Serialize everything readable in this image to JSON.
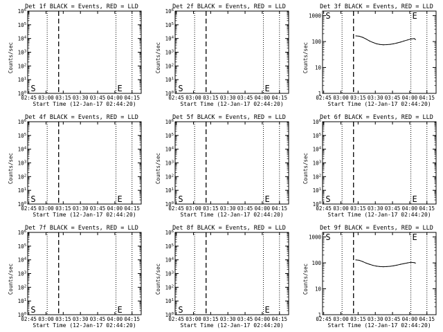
{
  "chart_data": [
    {
      "type": "line",
      "title": "Det 1f BLACK = Events, RED = LLD",
      "xlabel": "Start Time (12-Jan-17 02:44:20)",
      "ylabel": "Counts/sec",
      "x_ticks": [
        "02:45",
        "03:00",
        "03:15",
        "03:30",
        "03:45",
        "04:00",
        "04:15"
      ],
      "y_scale": "log",
      "y_ticks": [
        "10^0",
        "10^1",
        "10^2",
        "10^3",
        "10^4",
        "10^5",
        "10^6"
      ],
      "ylim": [
        1,
        1000000
      ],
      "vlines_dotted": [
        "03:01",
        "04:01",
        "04:15"
      ],
      "vline_dashed": "03:11",
      "markers": [
        {
          "text": "S",
          "x": "02:46"
        },
        {
          "text": "E",
          "x": "04:01"
        }
      ],
      "series": []
    },
    {
      "type": "line",
      "title": "Det 2f BLACK = Events, RED = LLD",
      "xlabel": "Start Time (12-Jan-17 02:44:20)",
      "ylabel": "Counts/sec",
      "x_ticks": [
        "02:45",
        "03:00",
        "03:15",
        "03:30",
        "03:45",
        "04:00",
        "04:15"
      ],
      "y_scale": "log",
      "y_ticks": [
        "10^0",
        "10^1",
        "10^2",
        "10^3",
        "10^4",
        "10^5",
        "10^6"
      ],
      "ylim": [
        1,
        1000000
      ],
      "vlines_dotted": [
        "03:01",
        "04:01",
        "04:15"
      ],
      "vline_dashed": "03:11",
      "markers": [
        {
          "text": "S",
          "x": "02:46"
        },
        {
          "text": "E",
          "x": "04:01"
        }
      ],
      "series": []
    },
    {
      "type": "line",
      "title": "Det 3f BLACK = Events, RED = LLD",
      "xlabel": "Start Time (12-Jan-17 02:44:20)",
      "ylabel": "Counts/sec",
      "x_ticks": [
        "02:45",
        "03:00",
        "03:15",
        "03:30",
        "03:45",
        "04:00",
        "04:15"
      ],
      "y_scale": "log",
      "y_ticks": [
        "1",
        "10",
        "100",
        "1000"
      ],
      "ylim": [
        1,
        1500
      ],
      "vlines_dotted": [
        "03:01",
        "04:01",
        "04:15"
      ],
      "vline_dashed": "03:11",
      "markers": [
        {
          "text": "S",
          "x": "02:46"
        },
        {
          "text": "E",
          "x": "04:01"
        }
      ],
      "series": [
        {
          "x": [
            "03:13",
            "03:16",
            "03:19",
            "03:22",
            "03:25",
            "03:28",
            "03:31",
            "03:34",
            "03:37",
            "03:40",
            "03:43",
            "03:46",
            "03:49",
            "03:52",
            "03:55",
            "03:58",
            "04:01",
            "04:04",
            "04:05"
          ],
          "y": [
            165,
            160,
            145,
            125,
            105,
            92,
            82,
            77,
            75,
            76,
            78,
            82,
            88,
            95,
            105,
            115,
            125,
            130,
            120
          ]
        }
      ]
    },
    {
      "type": "line",
      "title": "Det 4f BLACK = Events, RED = LLD",
      "xlabel": "Start Time (12-Jan-17 02:44:20)",
      "ylabel": "Counts/sec",
      "x_ticks": [
        "02:45",
        "03:00",
        "03:15",
        "03:30",
        "03:45",
        "04:00",
        "04:15"
      ],
      "y_scale": "log",
      "y_ticks": [
        "10^0",
        "10^1",
        "10^2",
        "10^3",
        "10^4",
        "10^5",
        "10^6"
      ],
      "ylim": [
        1,
        1000000
      ],
      "vlines_dotted": [
        "03:01",
        "04:01",
        "04:15"
      ],
      "vline_dashed": "03:11",
      "markers": [
        {
          "text": "S",
          "x": "02:46"
        },
        {
          "text": "E",
          "x": "04:01"
        }
      ],
      "series": []
    },
    {
      "type": "line",
      "title": "Det 5f BLACK = Events, RED = LLD",
      "xlabel": "Start Time (12-Jan-17 02:44:20)",
      "ylabel": "Counts/sec",
      "x_ticks": [
        "02:45",
        "03:00",
        "03:15",
        "03:30",
        "03:45",
        "04:00",
        "04:15"
      ],
      "y_scale": "log",
      "y_ticks": [
        "10^0",
        "10^1",
        "10^2",
        "10^3",
        "10^4",
        "10^5",
        "10^6"
      ],
      "ylim": [
        1,
        1000000
      ],
      "vlines_dotted": [
        "03:01",
        "04:01",
        "04:15"
      ],
      "vline_dashed": "03:11",
      "markers": [
        {
          "text": "S",
          "x": "02:46"
        },
        {
          "text": "E",
          "x": "04:01"
        }
      ],
      "series": []
    },
    {
      "type": "line",
      "title": "Det 6f BLACK = Events, RED = LLD",
      "xlabel": "Start Time (12-Jan-17 02:44:20)",
      "ylabel": "Counts/sec",
      "x_ticks": [
        "02:45",
        "03:00",
        "03:15",
        "03:30",
        "03:45",
        "04:00",
        "04:15"
      ],
      "y_scale": "log",
      "y_ticks": [
        "10^0",
        "10^1",
        "10^2",
        "10^3",
        "10^4",
        "10^5",
        "10^6"
      ],
      "ylim": [
        1,
        1000000
      ],
      "vlines_dotted": [
        "03:01",
        "04:01",
        "04:15"
      ],
      "vline_dashed": "03:11",
      "markers": [
        {
          "text": "S",
          "x": "02:46"
        },
        {
          "text": "E",
          "x": "04:01"
        }
      ],
      "series": []
    },
    {
      "type": "line",
      "title": "Det 7f BLACK = Events, RED = LLD",
      "xlabel": "Start Time (12-Jan-17 02:44:20)",
      "ylabel": "Counts/sec",
      "x_ticks": [
        "02:45",
        "03:00",
        "03:15",
        "03:30",
        "03:45",
        "04:00",
        "04:15"
      ],
      "y_scale": "log",
      "y_ticks": [
        "10^0",
        "10^1",
        "10^2",
        "10^3",
        "10^4",
        "10^5",
        "10^6"
      ],
      "ylim": [
        1,
        1000000
      ],
      "vlines_dotted": [
        "03:01",
        "04:01",
        "04:15"
      ],
      "vline_dashed": "03:11",
      "markers": [
        {
          "text": "S",
          "x": "02:46"
        },
        {
          "text": "E",
          "x": "04:01"
        }
      ],
      "series": []
    },
    {
      "type": "line",
      "title": "Det 8f BLACK = Events, RED = LLD",
      "xlabel": "Start Time (12-Jan-17 02:44:20)",
      "ylabel": "Counts/sec",
      "x_ticks": [
        "02:45",
        "03:00",
        "03:15",
        "03:30",
        "03:45",
        "04:00",
        "04:15"
      ],
      "y_scale": "log",
      "y_ticks": [
        "10^0",
        "10^1",
        "10^2",
        "10^3",
        "10^4",
        "10^5",
        "10^6"
      ],
      "ylim": [
        1,
        1000000
      ],
      "vlines_dotted": [
        "03:01",
        "04:01",
        "04:15"
      ],
      "vline_dashed": "03:11",
      "markers": [
        {
          "text": "S",
          "x": "02:46"
        },
        {
          "text": "E",
          "x": "04:01"
        }
      ],
      "series": []
    },
    {
      "type": "line",
      "title": "Det 9f BLACK = Events, RED = LLD",
      "xlabel": "Start Time (12-Jan-17 02:44:20)",
      "ylabel": "Counts/sec",
      "x_ticks": [
        "02:45",
        "03:00",
        "03:15",
        "03:30",
        "03:45",
        "04:00",
        "04:15"
      ],
      "y_scale": "log",
      "y_ticks": [
        "1",
        "10",
        "100",
        "1000"
      ],
      "ylim": [
        1,
        1500
      ],
      "vlines_dotted": [
        "03:01",
        "04:01",
        "04:15"
      ],
      "vline_dashed": "03:11",
      "markers": [
        {
          "text": "S",
          "x": "02:46"
        },
        {
          "text": "E",
          "x": "04:01"
        }
      ],
      "series": [
        {
          "x": [
            "03:13",
            "03:16",
            "03:19",
            "03:22",
            "03:25",
            "03:28",
            "03:31",
            "03:34",
            "03:37",
            "03:40",
            "03:43",
            "03:46",
            "03:49",
            "03:52",
            "03:55",
            "03:58",
            "04:01",
            "04:04",
            "04:05"
          ],
          "y": [
            130,
            125,
            112,
            98,
            88,
            80,
            75,
            72,
            71,
            72,
            74,
            77,
            82,
            88,
            94,
            100,
            105,
            102,
            98
          ]
        }
      ]
    }
  ]
}
